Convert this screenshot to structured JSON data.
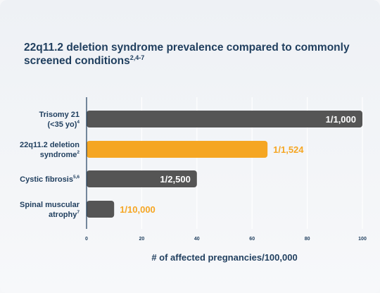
{
  "chart_data": {
    "type": "bar",
    "orientation": "horizontal",
    "title": "22q11.2 deletion syndrome prevalence compared to commonly screened conditions",
    "title_sup": "2,4-7",
    "categories": [
      {
        "lines": [
          "Trisomy 21",
          "(<35 yo)"
        ],
        "sup": "4"
      },
      {
        "lines": [
          "22q11.2 deletion",
          "syndrome"
        ],
        "sup": "2"
      },
      {
        "lines": [
          "Cystic fibrosis"
        ],
        "sup": "5,6"
      },
      {
        "lines": [
          "Spinal muscular",
          "atrophy"
        ],
        "sup": "7"
      }
    ],
    "values": [
      100,
      65.6,
      40,
      10
    ],
    "data_labels": [
      "1/1,000",
      "1/1,524",
      "1/2,500",
      "1/10,000"
    ],
    "highlight_index": 1,
    "xlabel": "# of affected pregnancies/100,000",
    "xlim": [
      0,
      100
    ],
    "xticks": [
      0,
      20,
      40,
      60,
      80,
      100
    ],
    "grid": true,
    "colors": {
      "bar": "#555555",
      "highlight": "#f5a623",
      "label_inside": "#ffffff",
      "label_outside": "#f5a623",
      "text": "#1f3e5e",
      "grid": "#ffffff",
      "axis": "#1f3e5e"
    }
  }
}
